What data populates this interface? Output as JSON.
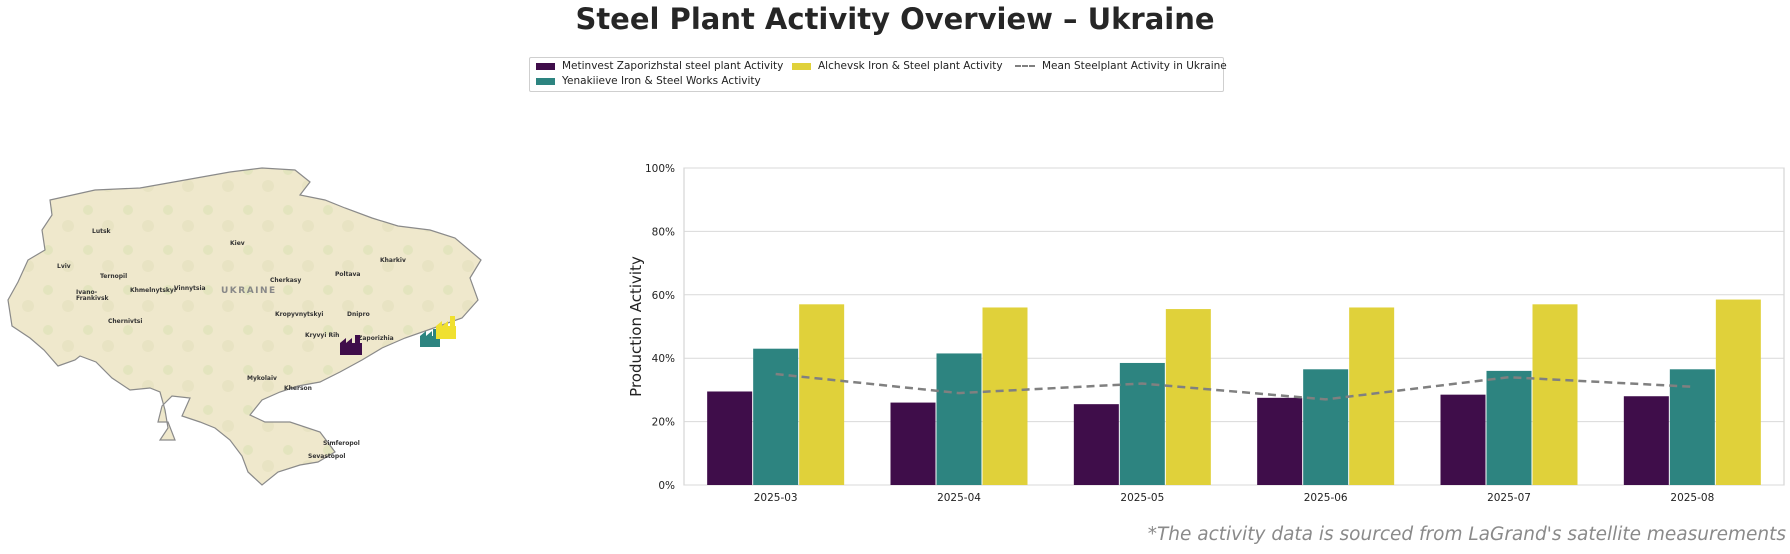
{
  "title": "Steel Plant Activity Overview – Ukraine",
  "footnote": "*The activity data is sourced from LaGrand's satellite measurements",
  "colors": {
    "metinvest": "#3f0d4a",
    "yenakiieve": "#2d8480",
    "alchevsk": "#e0d13a",
    "mean": "#808080",
    "map_land": "#efe8cc",
    "map_border": "#8a8a8a"
  },
  "map": {
    "country_label": "UKRAINE",
    "cities": [
      {
        "name": "Lutsk"
      },
      {
        "name": "Kiev"
      },
      {
        "name": "Kharkiv"
      },
      {
        "name": "Lviv"
      },
      {
        "name": "Ternopil"
      },
      {
        "name": "Ivano-"
      },
      {
        "name": "Frankivsk"
      },
      {
        "name": "Khmelnytskyi"
      },
      {
        "name": "Vinnytsia"
      },
      {
        "name": "Cherkasy"
      },
      {
        "name": "Poltava"
      },
      {
        "name": "Dnipro"
      },
      {
        "name": "Chernivtsi"
      },
      {
        "name": "Kropyvnytskyi"
      },
      {
        "name": "Kryvyi Rih"
      },
      {
        "name": "Zaporizhia"
      },
      {
        "name": "Mykolaiv"
      },
      {
        "name": "Kherson"
      },
      {
        "name": "Simferopol"
      },
      {
        "name": "Sevastopol"
      }
    ],
    "plant_icons": [
      "factory-icon-metinvest",
      "factory-icon-yenakiieve",
      "factory-icon-alchevsk"
    ]
  },
  "chart_data": {
    "type": "bar",
    "categories": [
      "2025-03",
      "2025-04",
      "2025-05",
      "2025-06",
      "2025-07",
      "2025-08"
    ],
    "series": [
      {
        "name": "Metinvest Zaporizhstal steel plant Activity",
        "values": [
          29.5,
          26,
          25.5,
          27.5,
          28.5,
          28
        ],
        "color": "#3f0d4a"
      },
      {
        "name": "Yenakiieve Iron & Steel Works Activity",
        "values": [
          43,
          41.5,
          38.5,
          36.5,
          36,
          36.5
        ],
        "color": "#2d8480"
      },
      {
        "name": "Alchevsk Iron & Steel plant Activity",
        "values": [
          57,
          56,
          55.5,
          56,
          57,
          58.5
        ],
        "color": "#e0d13a"
      }
    ],
    "mean_line": {
      "name": "Mean Steelplant Activity in Ukraine",
      "values": [
        35,
        29,
        32,
        27,
        34,
        31
      ],
      "style": "dashed",
      "color": "#808080"
    },
    "ylabel": "Production Activity",
    "xlabel": "",
    "ylim": [
      0,
      100
    ],
    "yticks": [
      "0%",
      "20%",
      "40%",
      "60%",
      "80%",
      "100%"
    ],
    "grid": true,
    "legend_placement": "top-center"
  }
}
